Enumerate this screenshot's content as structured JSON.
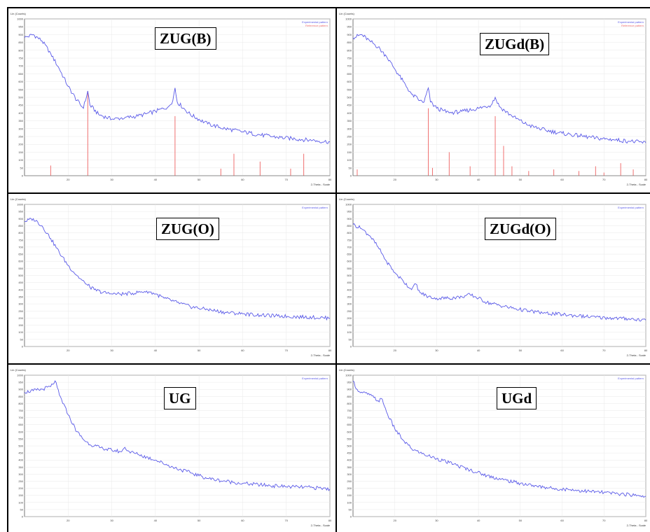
{
  "colors": {
    "pattern": "#5a5ae8",
    "reference": "#f07070",
    "grid": "#e8e8e8",
    "axis": "#555555"
  },
  "chart_data": [
    {
      "id": "zug_b",
      "type": "line",
      "title": "ZUG(B)",
      "ylabel": "Lin (Counts)",
      "xlabel": "2-Theta - Scale",
      "xlim": [
        10,
        80
      ],
      "ylim": [
        0,
        1000
      ],
      "yticks": [
        0,
        50,
        100,
        150,
        200,
        250,
        300,
        350,
        400,
        450,
        500,
        550,
        600,
        650,
        700,
        750,
        800,
        850,
        900,
        950,
        1000
      ],
      "xticks": [
        20,
        30,
        40,
        50,
        60,
        70,
        80
      ],
      "legend": [
        "Experimental pattern",
        "Reference pattern"
      ],
      "series": [
        {
          "values": [
            [
              10,
              880
            ],
            [
              12,
              900
            ],
            [
              14,
              860
            ],
            [
              16,
              780
            ],
            [
              18,
              680
            ],
            [
              20,
              570
            ],
            [
              22,
              480
            ],
            [
              23.5,
              430
            ],
            [
              24.5,
              540
            ],
            [
              25,
              450
            ],
            [
              27,
              390
            ],
            [
              30,
              360
            ],
            [
              33,
              370
            ],
            [
              36,
              380
            ],
            [
              40,
              410
            ],
            [
              43,
              440
            ],
            [
              44,
              480
            ],
            [
              44.5,
              560
            ],
            [
              45,
              470
            ],
            [
              48,
              390
            ],
            [
              52,
              330
            ],
            [
              56,
              300
            ],
            [
              60,
              280
            ],
            [
              64,
              260
            ],
            [
              68,
              245
            ],
            [
              72,
              235
            ],
            [
              76,
              225
            ],
            [
              80,
              215
            ]
          ]
        },
        {
          "name": "reference",
          "values": [
            [
              16,
              65
            ],
            [
              24.5,
              540
            ],
            [
              44.5,
              380
            ],
            [
              55,
              45
            ],
            [
              58,
              140
            ],
            [
              64,
              90
            ],
            [
              71,
              45
            ],
            [
              74,
              140
            ]
          ]
        }
      ]
    },
    {
      "id": "zugd_b",
      "type": "line",
      "title": "ZUGd(B)",
      "ylabel": "Lin (Counts)",
      "xlabel": "2-Theta - Scale",
      "xlim": [
        10,
        80
      ],
      "ylim": [
        0,
        1000
      ],
      "yticks": [
        0,
        50,
        100,
        150,
        200,
        250,
        300,
        350,
        400,
        450,
        500,
        550,
        600,
        650,
        700,
        750,
        800,
        850,
        900,
        950,
        1000
      ],
      "xticks": [
        20,
        30,
        40,
        50,
        60,
        70,
        80
      ],
      "legend": [
        "Experimental pattern",
        "Reference pattern"
      ],
      "series": [
        {
          "values": [
            [
              10,
              880
            ],
            [
              12,
              900
            ],
            [
              14,
              860
            ],
            [
              16,
              820
            ],
            [
              18,
              760
            ],
            [
              20,
              680
            ],
            [
              22,
              600
            ],
            [
              24,
              520
            ],
            [
              26,
              480
            ],
            [
              27,
              470
            ],
            [
              28,
              560
            ],
            [
              28.5,
              470
            ],
            [
              30,
              430
            ],
            [
              33,
              400
            ],
            [
              36,
              410
            ],
            [
              40,
              430
            ],
            [
              43,
              450
            ],
            [
              44,
              500
            ],
            [
              45,
              440
            ],
            [
              48,
              380
            ],
            [
              52,
              320
            ],
            [
              56,
              290
            ],
            [
              60,
              270
            ],
            [
              64,
              255
            ],
            [
              68,
              240
            ],
            [
              72,
              230
            ],
            [
              76,
              220
            ],
            [
              80,
              210
            ]
          ]
        },
        {
          "name": "reference",
          "values": [
            [
              11,
              40
            ],
            [
              28,
              430
            ],
            [
              29,
              50
            ],
            [
              33,
              150
            ],
            [
              38,
              60
            ],
            [
              44,
              380
            ],
            [
              46,
              190
            ],
            [
              48,
              60
            ],
            [
              52,
              30
            ],
            [
              58,
              40
            ],
            [
              64,
              30
            ],
            [
              68,
              60
            ],
            [
              70,
              20
            ],
            [
              74,
              80
            ],
            [
              77,
              40
            ]
          ]
        }
      ]
    },
    {
      "id": "zug_o",
      "type": "line",
      "title": "ZUG(O)",
      "ylabel": "Lin (Counts)",
      "xlabel": "2-Theta - Scale",
      "xlim": [
        10,
        80
      ],
      "ylim": [
        0,
        1000
      ],
      "yticks": [
        0,
        50,
        100,
        150,
        200,
        250,
        300,
        350,
        400,
        450,
        500,
        550,
        600,
        650,
        700,
        750,
        800,
        850,
        900,
        950,
        1000
      ],
      "xticks": [
        20,
        30,
        40,
        50,
        60,
        70,
        80
      ],
      "legend": [
        "Experimental pattern"
      ],
      "series": [
        {
          "values": [
            [
              10,
              880
            ],
            [
              12,
              900
            ],
            [
              14,
              850
            ],
            [
              16,
              760
            ],
            [
              18,
              660
            ],
            [
              20,
              570
            ],
            [
              22,
              500
            ],
            [
              24,
              440
            ],
            [
              26,
              400
            ],
            [
              28,
              380
            ],
            [
              30,
              370
            ],
            [
              33,
              370
            ],
            [
              36,
              380
            ],
            [
              38,
              390
            ],
            [
              40,
              370
            ],
            [
              42,
              340
            ],
            [
              45,
              310
            ],
            [
              48,
              280
            ],
            [
              52,
              260
            ],
            [
              56,
              240
            ],
            [
              60,
              230
            ],
            [
              64,
              220
            ],
            [
              68,
              215
            ],
            [
              72,
              210
            ],
            [
              76,
              205
            ],
            [
              80,
              200
            ]
          ]
        }
      ]
    },
    {
      "id": "zugd_o",
      "type": "line",
      "title": "ZUGd(O)",
      "ylabel": "Lin (Counts)",
      "xlabel": "2-Theta - Scale",
      "xlim": [
        10,
        80
      ],
      "ylim": [
        0,
        1000
      ],
      "yticks": [
        0,
        50,
        100,
        150,
        200,
        250,
        300,
        350,
        400,
        450,
        500,
        550,
        600,
        650,
        700,
        750,
        800,
        850,
        900,
        950,
        1000
      ],
      "xticks": [
        20,
        30,
        40,
        50,
        60,
        70,
        80
      ],
      "legend": [
        "Experimental pattern"
      ],
      "series": [
        {
          "values": [
            [
              10,
              860
            ],
            [
              12,
              830
            ],
            [
              14,
              780
            ],
            [
              16,
              700
            ],
            [
              18,
              600
            ],
            [
              20,
              520
            ],
            [
              22,
              460
            ],
            [
              24,
              400
            ],
            [
              25,
              440
            ],
            [
              26,
              380
            ],
            [
              28,
              350
            ],
            [
              30,
              340
            ],
            [
              33,
              340
            ],
            [
              36,
              350
            ],
            [
              38,
              365
            ],
            [
              40,
              340
            ],
            [
              42,
              310
            ],
            [
              45,
              290
            ],
            [
              48,
              270
            ],
            [
              52,
              250
            ],
            [
              56,
              235
            ],
            [
              60,
              225
            ],
            [
              64,
              215
            ],
            [
              68,
              205
            ],
            [
              72,
              200
            ],
            [
              76,
              195
            ],
            [
              80,
              185
            ]
          ]
        }
      ]
    },
    {
      "id": "ug",
      "type": "line",
      "title": "UG",
      "ylabel": "Lin (Counts)",
      "xlabel": "2-Theta - Scale",
      "xlim": [
        10,
        80
      ],
      "ylim": [
        0,
        1000
      ],
      "yticks": [
        0,
        50,
        100,
        150,
        200,
        250,
        300,
        350,
        400,
        450,
        500,
        550,
        600,
        650,
        700,
        750,
        800,
        850,
        900,
        950,
        1000
      ],
      "xticks": [
        20,
        30,
        40,
        50,
        60,
        70,
        80
      ],
      "legend": [
        "Experimental pattern"
      ],
      "series": [
        {
          "values": [
            [
              10,
              880
            ],
            [
              12,
              890
            ],
            [
              14,
              900
            ],
            [
              16,
              920
            ],
            [
              17,
              960
            ],
            [
              18,
              860
            ],
            [
              20,
              720
            ],
            [
              22,
              600
            ],
            [
              24,
              530
            ],
            [
              26,
              500
            ],
            [
              28,
              480
            ],
            [
              30,
              470
            ],
            [
              32,
              460
            ],
            [
              33,
              490
            ],
            [
              34,
              460
            ],
            [
              36,
              440
            ],
            [
              40,
              400
            ],
            [
              44,
              350
            ],
            [
              48,
              310
            ],
            [
              52,
              270
            ],
            [
              56,
              250
            ],
            [
              60,
              235
            ],
            [
              64,
              225
            ],
            [
              68,
              215
            ],
            [
              72,
              210
            ],
            [
              76,
              205
            ],
            [
              80,
              195
            ]
          ]
        }
      ]
    },
    {
      "id": "ugd",
      "type": "line",
      "title": "UGd",
      "ylabel": "Lin (Counts)",
      "xlabel": "2-Theta - Scale",
      "xlim": [
        10,
        80
      ],
      "ylim": [
        0,
        1000
      ],
      "yticks": [
        0,
        50,
        100,
        150,
        200,
        250,
        300,
        350,
        400,
        450,
        500,
        550,
        600,
        650,
        700,
        750,
        800,
        850,
        900,
        950,
        1000
      ],
      "xticks": [
        20,
        30,
        40,
        50,
        60,
        70,
        80
      ],
      "legend": [
        "Experimental pattern"
      ],
      "series": [
        {
          "values": [
            [
              10,
              960
            ],
            [
              11,
              900
            ],
            [
              12,
              880
            ],
            [
              14,
              860
            ],
            [
              16,
              820
            ],
            [
              17,
              830
            ],
            [
              18,
              740
            ],
            [
              20,
              620
            ],
            [
              22,
              540
            ],
            [
              24,
              480
            ],
            [
              26,
              450
            ],
            [
              28,
              430
            ],
            [
              30,
              410
            ],
            [
              34,
              370
            ],
            [
              38,
              330
            ],
            [
              42,
              290
            ],
            [
              46,
              260
            ],
            [
              50,
              235
            ],
            [
              54,
              215
            ],
            [
              58,
              200
            ],
            [
              62,
              190
            ],
            [
              66,
              180
            ],
            [
              70,
              170
            ],
            [
              74,
              160
            ],
            [
              78,
              150
            ],
            [
              80,
              145
            ]
          ]
        }
      ]
    }
  ]
}
